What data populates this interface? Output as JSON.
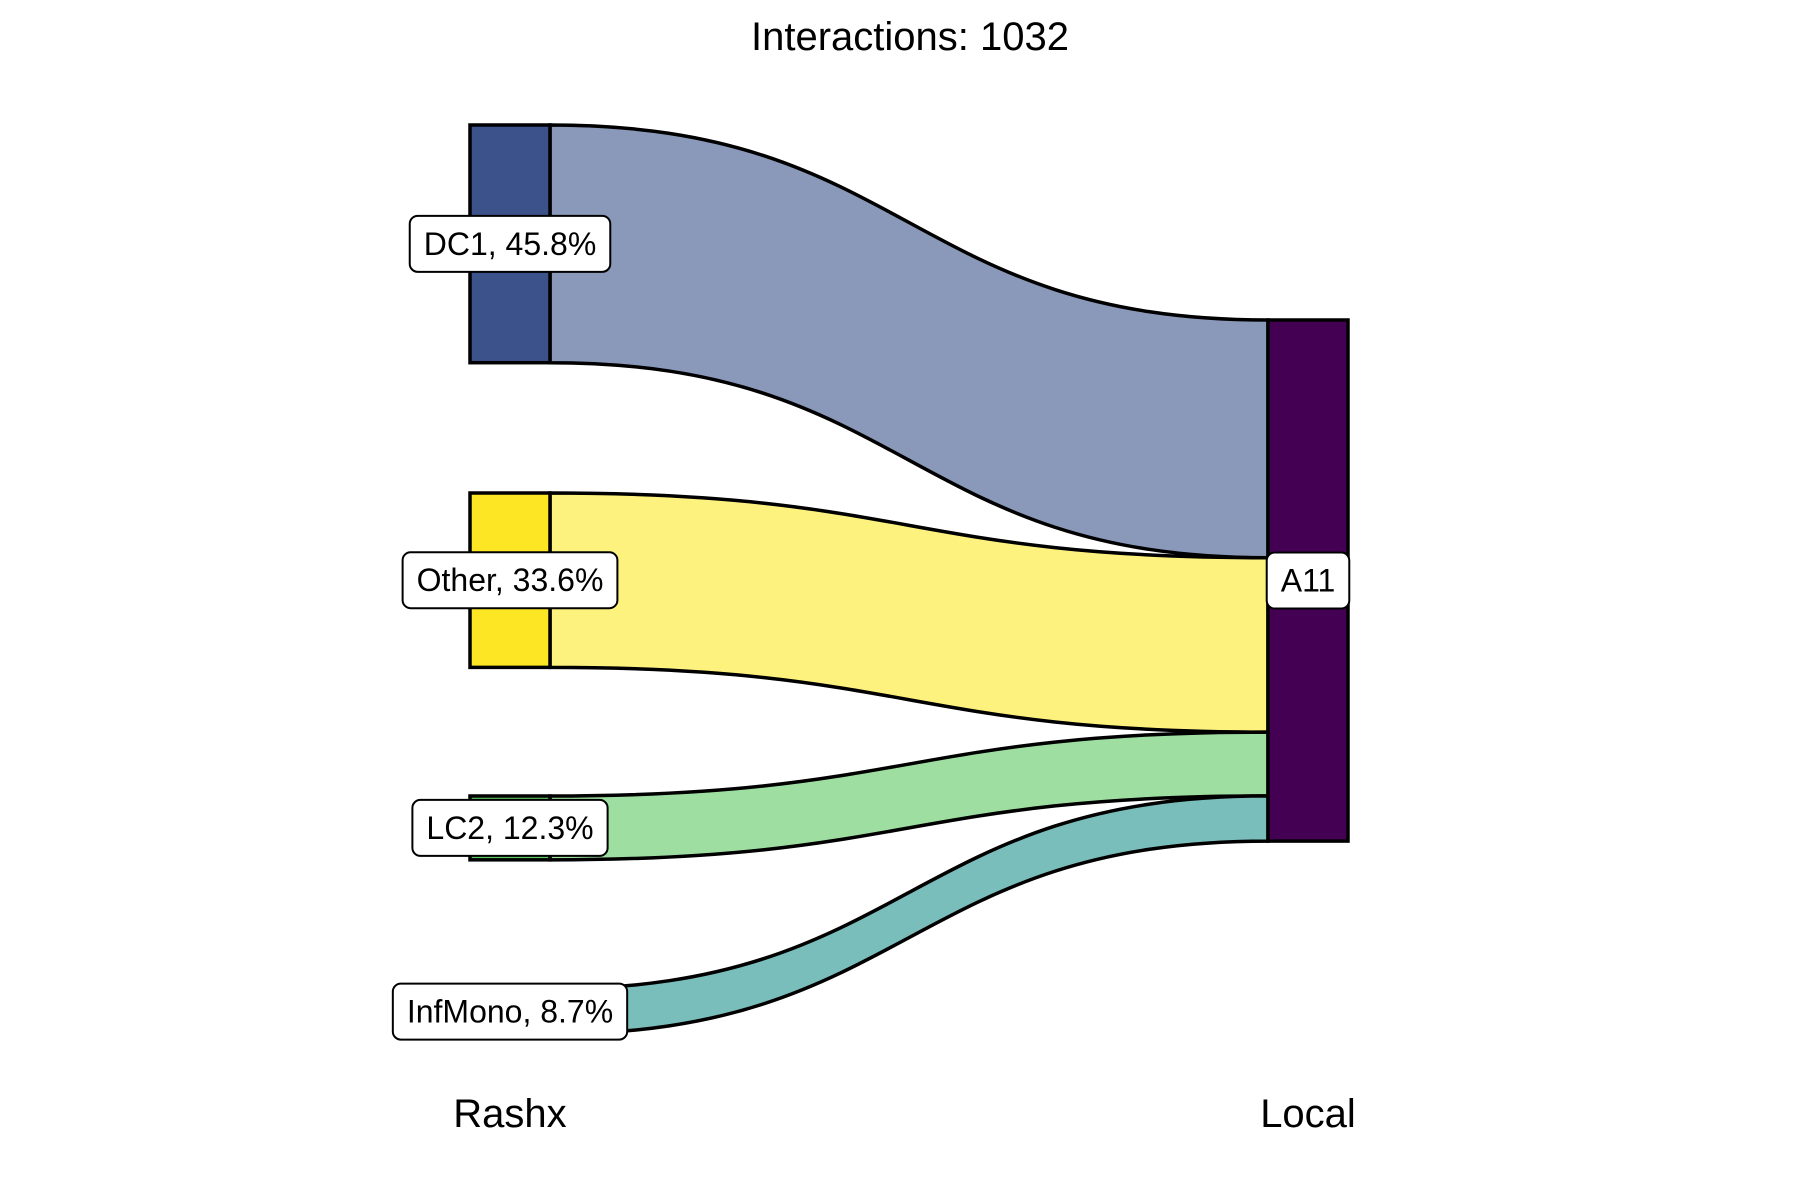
{
  "chart_data": {
    "type": "sankey",
    "title": "Interactions: 1032",
    "axes": [
      "Rashx",
      "Local"
    ],
    "nodes": [
      {
        "id": "DC1",
        "axis": "Rashx",
        "label": "DC1, 45.8%",
        "value": 45.8,
        "color": "#3B528B"
      },
      {
        "id": "Other",
        "axis": "Rashx",
        "label": "Other, 33.6%",
        "value": 33.6,
        "color": "#FDE725"
      },
      {
        "id": "LC2",
        "axis": "Rashx",
        "label": "LC2, 12.3%",
        "value": 12.3,
        "color": "#5EC962"
      },
      {
        "id": "InfMono",
        "axis": "Rashx",
        "label": "InfMono, 8.7%",
        "value": 8.7,
        "color": "#21908C"
      },
      {
        "id": "A11",
        "axis": "Local",
        "label": "A11",
        "value": 100,
        "color": "#440154"
      }
    ],
    "flows": [
      {
        "from": "DC1",
        "to": "A11",
        "value": 45.8,
        "color": "#8A99BA"
      },
      {
        "from": "Other",
        "to": "A11",
        "value": 33.6,
        "color": "#FEF27F"
      },
      {
        "from": "LC2",
        "to": "A11",
        "value": 12.3,
        "color": "#9EDFA1"
      },
      {
        "from": "InfMono",
        "to": "A11",
        "value": 8.7,
        "color": "#7ABEBC"
      }
    ],
    "legend": "none",
    "grid": false
  }
}
